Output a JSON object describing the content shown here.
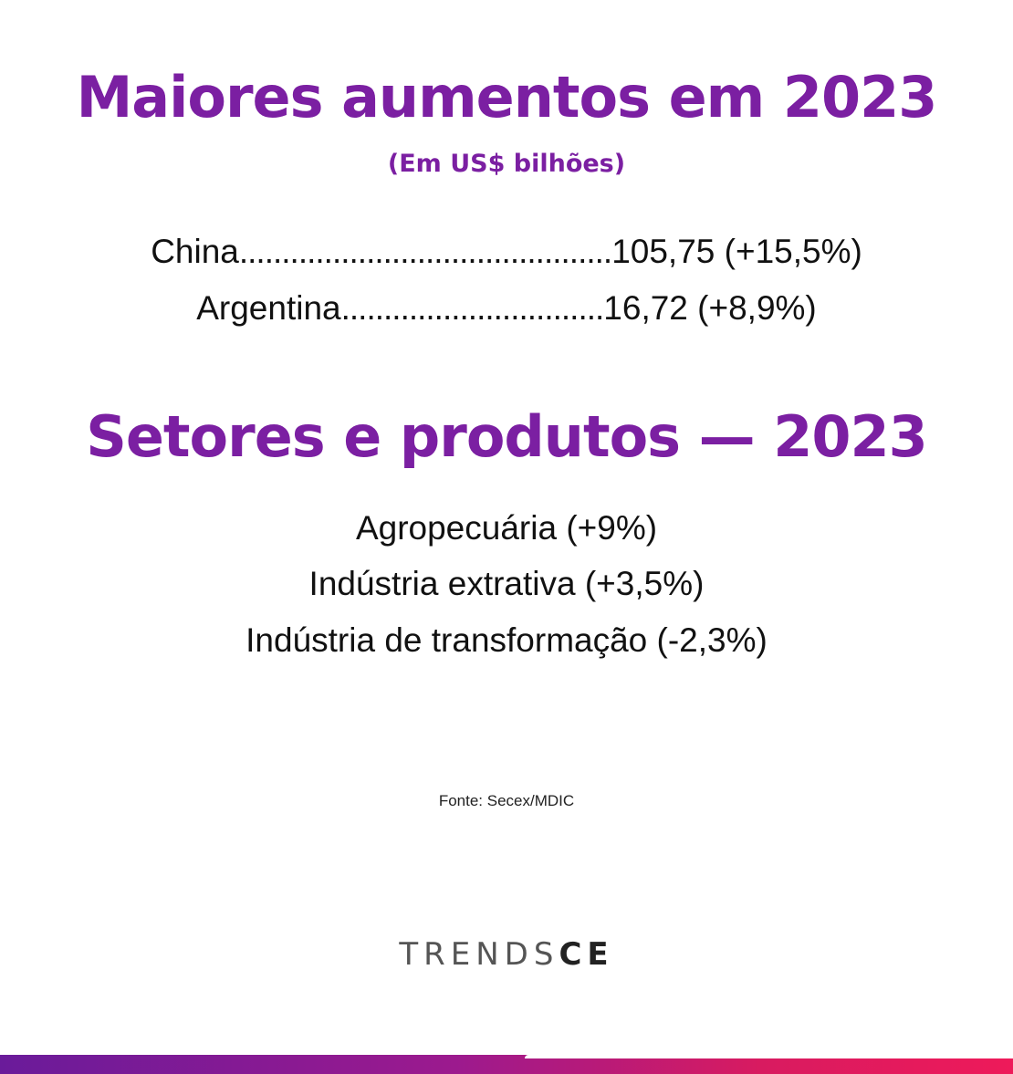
{
  "section1": {
    "title": "Maiores aumentos em 2023",
    "subtitle": "(Em US$ bilhões)",
    "rows": [
      {
        "label": "China",
        "dots": "............................................",
        "value": "105,75 (+15,5%)"
      },
      {
        "label": "Argentina",
        "dots": "...............................",
        "value": "16,72 (+8,9%)"
      }
    ]
  },
  "section2": {
    "title": "Setores e produtos — 2023",
    "items": [
      "Agropecuária (+9%)",
      "Indústria extrativa (+3,5%)",
      "Indústria de transformação (-2,3%)"
    ]
  },
  "source": "Fonte: Secex/MDIC",
  "logo": {
    "light": "TRENDS",
    "bold": "CE"
  },
  "colors": {
    "accent": "#7b1fa2",
    "bar_start": "#6a1b9a",
    "bar_end": "#ee1a5a"
  }
}
